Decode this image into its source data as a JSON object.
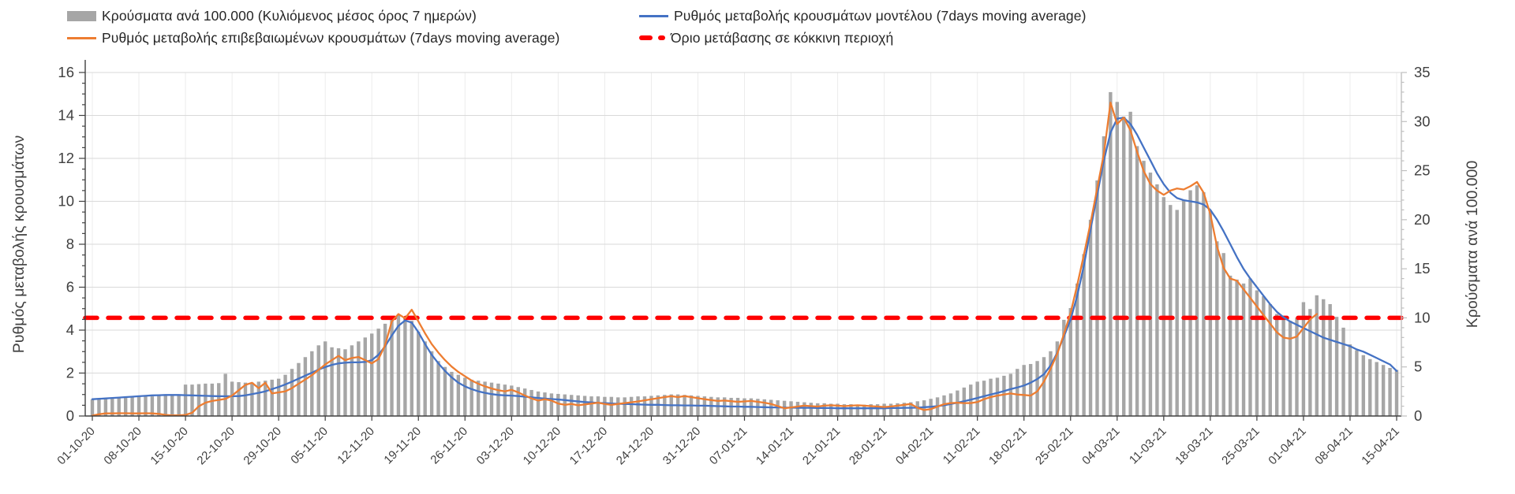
{
  "colors": {
    "bars": "#A6A6A6",
    "model_line": "#4472C4",
    "confirmed_line": "#ED7D31",
    "threshold": "#FF0000",
    "gridline": "#D9D9D9",
    "gridline_vertical": "#ECECEC",
    "axis_line": "#404040",
    "right_axis_line": "#BFBFBF",
    "text": "#404040"
  },
  "legend": {
    "items": [
      {
        "id": "cases",
        "label": "Κρούσματα ανά 100.000 (Κυλιόμενος μέσος όρος 7 ημερών)",
        "swatch": "bar"
      },
      {
        "id": "model",
        "label": "Ρυθμός μεταβολής κρουσμάτων μοντέλου (7days moving average)",
        "swatch": "line"
      },
      {
        "id": "confirmed",
        "label": "Ρυθμός μεταβολής επιβεβαιωμένων κρουσμάτων (7days moving average)",
        "swatch": "line"
      },
      {
        "id": "threshold",
        "label": "Όριο μετάβασης σε κόκκινη περιοχή",
        "swatch": "dash"
      }
    ]
  },
  "chart_data": {
    "type": "combo-bar-line",
    "grid": "horizontal-and-weekly-vertical",
    "legend_position": "top",
    "left_axis": {
      "title": "Ρυθμός μεταβολής κρουσμάτων",
      "min": 0,
      "max": 16,
      "step": 2,
      "minor_step": 0.5,
      "tick_labels": [
        "0",
        "2",
        "4",
        "6",
        "8",
        "10",
        "12",
        "14",
        "16"
      ]
    },
    "right_axis": {
      "title": "Κρούσματα ανά 100.000",
      "min": 0,
      "max": 35,
      "step": 5,
      "minor_step": 1,
      "tick_labels": [
        "0",
        "5",
        "10",
        "15",
        "20",
        "25",
        "30",
        "35"
      ]
    },
    "x_axis": {
      "first_date": "01-10-20",
      "last_date": "15-04-21",
      "tick_every_days": 7,
      "tick_labels": [
        "01-10-20",
        "08-10-20",
        "15-10-20",
        "22-10-20",
        "29-10-20",
        "05-11-20",
        "12-11-20",
        "19-11-20",
        "26-11-20",
        "03-12-20",
        "10-12-20",
        "17-12-20",
        "24-12-20",
        "31-12-20",
        "07-01-21",
        "14-01-21",
        "21-01-21",
        "28-01-21",
        "04-02-21",
        "11-02-21",
        "18-02-21",
        "25-02-21",
        "04-03-21",
        "11-03-21",
        "18-03-21",
        "25-03-21",
        "01-04-21",
        "08-04-21",
        "15-04-21"
      ]
    },
    "threshold": {
      "label": "Όριο μετάβασης σε κόκκινη περιοχή",
      "axis": "right",
      "value": 10
    },
    "series": [
      {
        "name": "Κρούσματα ανά 100.000 (Κυλιόμενος μέσος όρος 7 ημερών)",
        "type": "bar",
        "axis": "right",
        "values": [
          1.7,
          1.7,
          1.75,
          1.8,
          1.85,
          1.9,
          1.9,
          1.95,
          2.0,
          2.0,
          2.05,
          2.1,
          2.1,
          2.15,
          3.2,
          3.2,
          3.25,
          3.3,
          3.3,
          3.35,
          4.3,
          3.5,
          3.45,
          3.4,
          3.4,
          3.5,
          3.6,
          3.7,
          3.8,
          4.2,
          4.8,
          5.4,
          6.0,
          6.6,
          7.2,
          7.6,
          7.0,
          6.9,
          6.8,
          7.2,
          7.6,
          8.0,
          8.4,
          8.9,
          9.4,
          9.9,
          10.3,
          10.1,
          9.7,
          8.6,
          7.6,
          6.6,
          5.6,
          5.0,
          4.5,
          4.2,
          3.9,
          3.7,
          3.6,
          3.5,
          3.4,
          3.3,
          3.2,
          3.1,
          2.95,
          2.8,
          2.65,
          2.5,
          2.4,
          2.3,
          2.25,
          2.2,
          2.15,
          2.1,
          2.05,
          2.0,
          2.0,
          1.95,
          1.95,
          1.9,
          1.9,
          1.95,
          2.0,
          2.0,
          2.05,
          2.1,
          2.15,
          2.2,
          2.2,
          2.15,
          2.1,
          2.05,
          2.0,
          1.95,
          1.9,
          1.9,
          1.85,
          1.85,
          1.8,
          1.8,
          1.75,
          1.7,
          1.65,
          1.6,
          1.55,
          1.5,
          1.45,
          1.4,
          1.35,
          1.3,
          1.3,
          1.25,
          1.25,
          1.2,
          1.2,
          1.15,
          1.15,
          1.2,
          1.2,
          1.25,
          1.25,
          1.3,
          1.35,
          1.4,
          1.5,
          1.6,
          1.75,
          1.9,
          2.1,
          2.3,
          2.6,
          2.9,
          3.2,
          3.5,
          3.6,
          3.8,
          3.9,
          4.1,
          4.3,
          4.8,
          5.2,
          5.3,
          5.6,
          6.0,
          6.6,
          7.6,
          9.8,
          11.0,
          13.5,
          16.5,
          20.0,
          24.0,
          28.5,
          33.0,
          32.0,
          30.5,
          31.0,
          27.5,
          26.0,
          24.8,
          23.6,
          22.3,
          21.5,
          21.0,
          22.0,
          23.0,
          23.5,
          22.8,
          20.8,
          17.8,
          16.6,
          14.3,
          13.9,
          13.5,
          14.0,
          12.8,
          12.2,
          11.4,
          10.4,
          9.9,
          9.7,
          10.0,
          11.6,
          10.9,
          12.3,
          11.9,
          11.4,
          10.1,
          9.0,
          7.3,
          6.7,
          6.2,
          5.8,
          5.5,
          5.2,
          4.9,
          4.7
        ]
      },
      {
        "name": "Ρυθμός μεταβολής κρουσμάτων μοντέλου (7days moving average)",
        "type": "line",
        "axis": "left",
        "values": [
          0.78,
          0.8,
          0.82,
          0.84,
          0.86,
          0.88,
          0.9,
          0.92,
          0.94,
          0.96,
          0.97,
          0.98,
          0.98,
          0.98,
          0.97,
          0.96,
          0.95,
          0.94,
          0.93,
          0.92,
          0.92,
          0.92,
          0.93,
          0.96,
          1.02,
          1.08,
          1.15,
          1.25,
          1.35,
          1.47,
          1.6,
          1.74,
          1.88,
          2.02,
          2.16,
          2.28,
          2.38,
          2.45,
          2.48,
          2.5,
          2.5,
          2.52,
          2.6,
          2.85,
          3.25,
          3.75,
          4.2,
          4.45,
          4.35,
          3.9,
          3.35,
          2.85,
          2.45,
          2.1,
          1.8,
          1.55,
          1.38,
          1.25,
          1.15,
          1.08,
          1.02,
          0.98,
          0.96,
          0.95,
          0.93,
          0.9,
          0.87,
          0.84,
          0.81,
          0.79,
          0.77,
          0.74,
          0.71,
          0.68,
          0.65,
          0.63,
          0.61,
          0.6,
          0.58,
          0.57,
          0.56,
          0.55,
          0.54,
          0.53,
          0.52,
          0.52,
          0.51,
          0.5,
          0.5,
          0.49,
          0.49,
          0.48,
          0.48,
          0.47,
          0.46,
          0.45,
          0.44,
          0.44,
          0.43,
          0.43,
          0.42,
          0.41,
          0.4,
          0.4,
          0.39,
          0.39,
          0.38,
          0.38,
          0.38,
          0.37,
          0.37,
          0.37,
          0.36,
          0.36,
          0.36,
          0.36,
          0.36,
          0.36,
          0.36,
          0.36,
          0.37,
          0.37,
          0.38,
          0.38,
          0.39,
          0.41,
          0.43,
          0.46,
          0.5,
          0.56,
          0.62,
          0.69,
          0.76,
          0.84,
          0.92,
          1.0,
          1.08,
          1.16,
          1.25,
          1.33,
          1.42,
          1.55,
          1.72,
          1.95,
          2.35,
          2.95,
          3.7,
          4.5,
          5.6,
          7.0,
          8.7,
          10.3,
          11.9,
          13.2,
          13.85,
          13.9,
          13.6,
          13.1,
          12.5,
          11.9,
          11.3,
          10.8,
          10.4,
          10.15,
          10.05,
          10.0,
          9.95,
          9.85,
          9.6,
          9.15,
          8.6,
          8.0,
          7.4,
          6.85,
          6.4,
          6.0,
          5.6,
          5.2,
          4.85,
          4.6,
          4.4,
          4.25,
          4.1,
          3.95,
          3.8,
          3.65,
          3.55,
          3.45,
          3.35,
          3.25,
          3.1,
          3.0,
          2.85,
          2.7,
          2.55,
          2.4,
          2.1
        ]
      },
      {
        "name": "Ρυθμός μεταβολής επιβεβαιωμένων κρουσμάτων (7days moving average)",
        "type": "line",
        "axis": "left",
        "values": [
          0.02,
          0.08,
          0.12,
          0.12,
          0.13,
          0.13,
          0.12,
          0.12,
          0.13,
          0.12,
          0.1,
          0.05,
          0.03,
          0.03,
          0.05,
          0.15,
          0.45,
          0.62,
          0.7,
          0.75,
          0.8,
          0.95,
          1.2,
          1.45,
          1.55,
          1.3,
          1.55,
          1.05,
          1.1,
          1.15,
          1.3,
          1.5,
          1.7,
          1.9,
          2.15,
          2.4,
          2.6,
          2.8,
          2.6,
          2.7,
          2.75,
          2.6,
          2.45,
          2.65,
          3.3,
          4.4,
          4.75,
          4.55,
          4.95,
          4.4,
          3.85,
          3.35,
          2.95,
          2.6,
          2.3,
          2.05,
          1.85,
          1.65,
          1.5,
          1.38,
          1.28,
          1.2,
          1.15,
          1.22,
          1.1,
          0.95,
          0.82,
          0.72,
          0.78,
          0.72,
          0.58,
          0.52,
          0.56,
          0.5,
          0.54,
          0.58,
          0.62,
          0.56,
          0.52,
          0.56,
          0.6,
          0.64,
          0.68,
          0.73,
          0.78,
          0.83,
          0.88,
          0.92,
          0.88,
          0.93,
          0.88,
          0.83,
          0.78,
          0.74,
          0.7,
          0.72,
          0.69,
          0.66,
          0.68,
          0.7,
          0.66,
          0.62,
          0.56,
          0.46,
          0.36,
          0.4,
          0.44,
          0.48,
          0.46,
          0.44,
          0.48,
          0.5,
          0.48,
          0.46,
          0.48,
          0.5,
          0.48,
          0.46,
          0.44,
          0.42,
          0.44,
          0.48,
          0.52,
          0.56,
          0.38,
          0.28,
          0.32,
          0.44,
          0.55,
          0.6,
          0.62,
          0.6,
          0.6,
          0.65,
          0.78,
          0.88,
          0.95,
          1.0,
          1.05,
          1.0,
          0.98,
          0.95,
          1.15,
          1.6,
          2.2,
          2.9,
          3.8,
          4.8,
          6.1,
          7.5,
          9.0,
          10.6,
          12.2,
          14.6,
          13.6,
          13.9,
          13.3,
          12.3,
          11.4,
          10.8,
          10.5,
          10.3,
          10.5,
          10.6,
          10.55,
          10.7,
          10.9,
          10.4,
          9.4,
          7.9,
          6.9,
          6.4,
          6.3,
          5.9,
          5.5,
          5.1,
          4.7,
          4.3,
          3.9,
          3.65,
          3.6,
          3.7,
          4.1,
          4.5,
          4.75
        ]
      }
    ]
  }
}
